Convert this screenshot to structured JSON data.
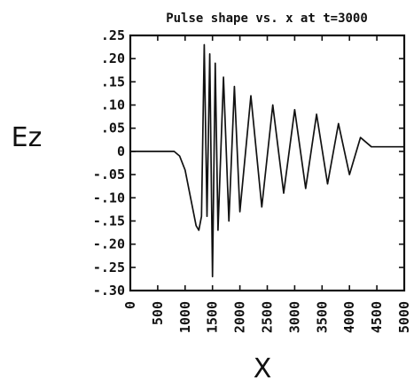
{
  "chart_data": {
    "type": "line",
    "title": "Pulse shape vs. x at t=3000",
    "xlabel": "X",
    "ylabel": "Ez",
    "xlim": [
      0,
      5000
    ],
    "ylim": [
      -0.3,
      0.25
    ],
    "xticks": [
      "0",
      "500",
      "1000",
      "1500",
      "2000",
      "2500",
      "3000",
      "3500",
      "4000",
      "4500",
      "5000"
    ],
    "yticks": [
      ".25",
      ".20",
      ".15",
      ".10",
      ".05",
      "0",
      "-.05",
      "-.10",
      "-.15",
      "-.20",
      "-.25",
      "-.30"
    ],
    "ytick_values": [
      0.25,
      0.2,
      0.15,
      0.1,
      0.05,
      0,
      -0.05,
      -0.1,
      -0.15,
      -0.2,
      -0.25,
      -0.3
    ],
    "grid": false,
    "series": [
      {
        "x": [
          0,
          800,
          900,
          1000,
          1100,
          1200,
          1250,
          1300,
          1350,
          1400,
          1450,
          1500,
          1550,
          1600,
          1700,
          1800,
          1900,
          2000,
          2200,
          2400,
          2600,
          2800,
          3000,
          3200,
          3400,
          3600,
          3800,
          4000,
          4200,
          4400,
          5000
        ],
        "y": [
          0,
          0,
          -0.01,
          -0.04,
          -0.1,
          -0.16,
          -0.17,
          -0.14,
          0.23,
          -0.14,
          0.21,
          -0.27,
          0.19,
          -0.17,
          0.16,
          -0.15,
          0.14,
          -0.13,
          0.12,
          -0.12,
          0.1,
          -0.09,
          0.09,
          -0.08,
          0.08,
          -0.07,
          0.06,
          -0.05,
          0.03,
          0.01,
          0.01
        ]
      }
    ]
  }
}
